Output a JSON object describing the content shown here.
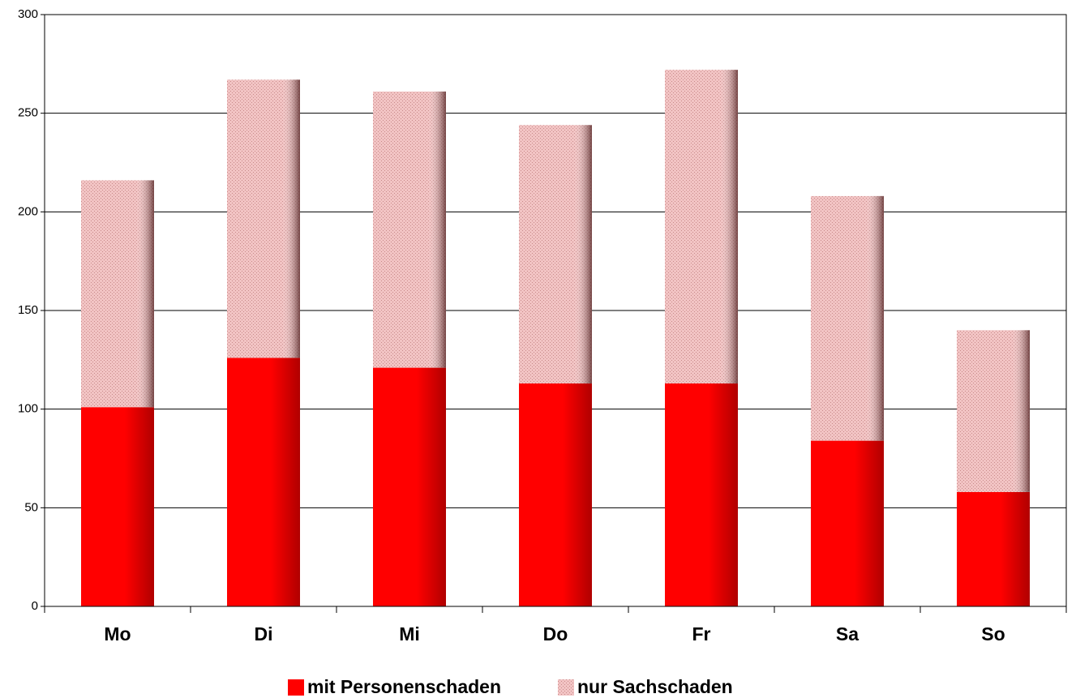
{
  "chart_data": {
    "type": "stacked_bar",
    "categories": [
      "Mo",
      "Di",
      "Mi",
      "Do",
      "Fr",
      "Sa",
      "So"
    ],
    "series": [
      {
        "name": "mit Personenschaden",
        "color": "#ff0000",
        "values": [
          101,
          126,
          121,
          113,
          113,
          84,
          58
        ]
      },
      {
        "name": "nur Sachschaden",
        "color": "#f2c4c4",
        "values": [
          115,
          141,
          140,
          131,
          159,
          124,
          82
        ]
      }
    ],
    "ylim": [
      0,
      300
    ],
    "yticks": [
      0,
      50,
      100,
      150,
      200,
      250,
      300
    ],
    "grid": true,
    "legend": "bottom"
  }
}
